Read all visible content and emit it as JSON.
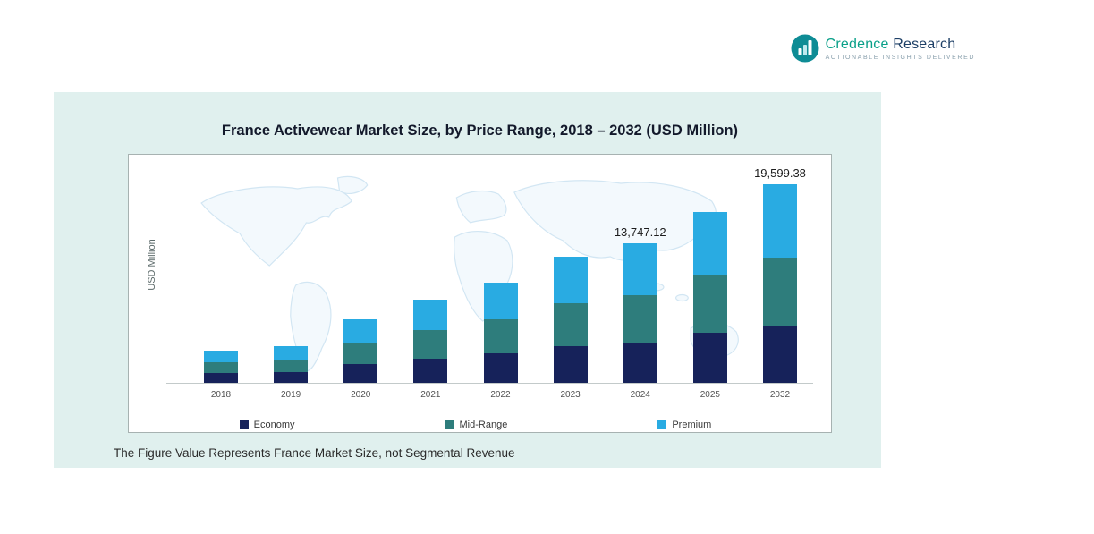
{
  "logo": {
    "name_teal": "Credence",
    "name_navy": " Research",
    "tagline": "Actionable Insights Delivered"
  },
  "chart_data": {
    "type": "bar",
    "stacked": true,
    "title": "France Activewear Market Size, by Price Range, 2018 – 2032 (USD Million)",
    "ylabel": "USD Million",
    "xlabel": "",
    "ylim": [
      0,
      21000
    ],
    "grid": false,
    "legend_position": "bottom",
    "categories": [
      "2018",
      "2019",
      "2020",
      "2021",
      "2022",
      "2023",
      "2024",
      "2025",
      "2032"
    ],
    "series": [
      {
        "name": "Economy",
        "color": "#16225a",
        "values": [
          930,
          1040,
          1830,
          2380,
          2870,
          3596,
          3986.66,
          4901,
          5683.82
        ]
      },
      {
        "name": "Mid-Range",
        "color": "#2e7d7c",
        "values": [
          1090,
          1225,
          2140,
          2790,
          3365,
          4216,
          4674.02,
          5746,
          6663.79
        ]
      },
      {
        "name": "Premium",
        "color": "#29abe2",
        "values": [
          1180,
          1335,
          2330,
          3030,
          3665,
          4588,
          5086.44,
          6253,
          7251.77
        ]
      }
    ],
    "totals": [
      3200,
      3600,
      6300,
      8200,
      9900,
      12400,
      13747.12,
      16900,
      19599.38
    ],
    "data_labels": {
      "2024": "13,747.12",
      "2032": "19,599.38"
    },
    "footnote": "The Figure Value Represents France Market Size, not Segmental Revenue"
  }
}
